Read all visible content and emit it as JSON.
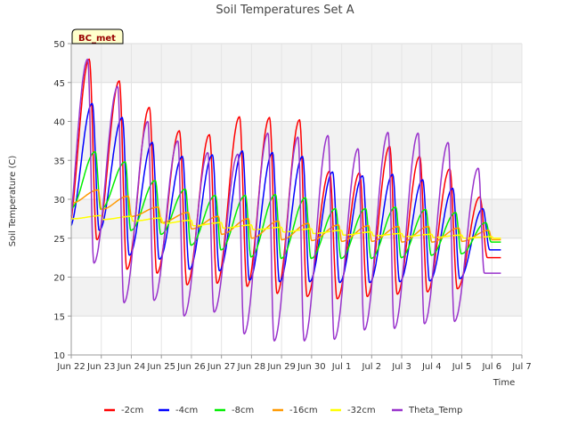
{
  "chart_data": {
    "type": "line",
    "title": "Soil Temperatures Set A",
    "xlabel": "Time",
    "ylabel": "Soil Temperature (C)",
    "badge": "BC_met",
    "ylim": [
      10,
      50
    ],
    "yticks": [
      10,
      15,
      20,
      25,
      30,
      35,
      40,
      45,
      50
    ],
    "xlim": [
      0,
      15
    ],
    "xticks": [
      {
        "x": 0,
        "label": "Jun 22"
      },
      {
        "x": 1,
        "label": "Jun 23"
      },
      {
        "x": 2,
        "label": "Jun 24"
      },
      {
        "x": 3,
        "label": "Jun 25"
      },
      {
        "x": 4,
        "label": "Jun 26"
      },
      {
        "x": 5,
        "label": "Jun 27"
      },
      {
        "x": 6,
        "label": "Jun 28"
      },
      {
        "x": 7,
        "label": "Jun 29"
      },
      {
        "x": 8,
        "label": "Jun 30"
      },
      {
        "x": 9,
        "label": "Jul 1"
      },
      {
        "x": 10,
        "label": "Jul 2"
      },
      {
        "x": 11,
        "label": "Jul 3"
      },
      {
        "x": 12,
        "label": "Jul 4"
      },
      {
        "x": 13,
        "label": "Jul 5"
      },
      {
        "x": 14,
        "label": "Jul 6"
      },
      {
        "x": 15,
        "label": "Jul 7"
      }
    ],
    "grid": true,
    "legend_position": "bottom",
    "series": [
      {
        "name": "-2cm",
        "color": "#ff0000",
        "x_start": 0.0,
        "x_end": 14.3,
        "peak_time": 0.6,
        "skew": 0.25,
        "offset": 0,
        "maxima": [
          48,
          45.2,
          41.8,
          38.8,
          38.3,
          40.6,
          40.5,
          40.2,
          33.6,
          33.4,
          36.8,
          35.5,
          33.9,
          30.3
        ],
        "minima": [
          25.2,
          24.8,
          21,
          20.5,
          19,
          19.2,
          18.8,
          17.9,
          17.5,
          17.2,
          17.5,
          17.8,
          18.1,
          18.5,
          22.5
        ]
      },
      {
        "name": "-4cm",
        "color": "#0000ff",
        "x_start": 0.0,
        "x_end": 14.3,
        "peak_time": 0.7,
        "skew": 0.27,
        "offset": 0,
        "maxima": [
          42.3,
          40.5,
          37.3,
          35.5,
          35.7,
          36.2,
          36,
          35.5,
          33.5,
          33,
          33.2,
          32.5,
          31.4,
          28.8
        ],
        "minima": [
          26.3,
          26,
          22.8,
          22.3,
          21,
          20.8,
          19.6,
          19.4,
          19.4,
          19.3,
          19.3,
          19.4,
          19.5,
          19.8,
          23.5
        ]
      },
      {
        "name": "-8cm",
        "color": "#00ee00",
        "x_start": 0.0,
        "x_end": 14.3,
        "peak_time": 0.8,
        "skew": 0.32,
        "offset": 0,
        "maxima": [
          36.1,
          34.8,
          32.4,
          31.3,
          30.5,
          30.5,
          30.6,
          30.2,
          28.8,
          28.8,
          29,
          28.7,
          28.3,
          27
        ],
        "minima": [
          28.8,
          28.7,
          26,
          25.5,
          24.1,
          23.5,
          22.6,
          22.4,
          22.4,
          22.4,
          22.4,
          22.5,
          22.8,
          23,
          24.5
        ]
      },
      {
        "name": "-16cm",
        "color": "#ff9900",
        "x_start": 0.0,
        "x_end": 14.3,
        "peak_time": 0.9,
        "skew": 0.4,
        "offset": 0,
        "maxima": [
          31.2,
          30.4,
          29,
          28.3,
          27.8,
          27.5,
          27.2,
          26.9,
          26.7,
          26.6,
          26.5,
          26.5,
          26.3,
          26
        ],
        "minima": [
          29.5,
          28.7,
          27.8,
          27,
          26.2,
          25.5,
          25,
          24.8,
          24.7,
          24.6,
          24.6,
          24.5,
          24.5,
          24.6,
          24.8
        ]
      },
      {
        "name": "-32cm",
        "color": "#ffff00",
        "x_start": 0.0,
        "x_end": 14.3,
        "peak_time": 1.0,
        "skew": 0.45,
        "offset": 0,
        "maxima": [
          27.9,
          27.8,
          27.6,
          27.3,
          27,
          26.7,
          26.4,
          26.2,
          26,
          25.8,
          25.6,
          25.5,
          25.4,
          25.2
        ],
        "minima": [
          27.5,
          27.4,
          27.2,
          26.9,
          26.6,
          26.3,
          26.1,
          25.8,
          25.6,
          25.4,
          25.3,
          25.2,
          25.1,
          25.0,
          25.0
        ]
      },
      {
        "name": "Theta_Temp",
        "color": "#9933cc",
        "x_start": 0.0,
        "x_end": 14.3,
        "peak_time": 0.55,
        "skew": 0.3,
        "offset": 0,
        "maxima": [
          48,
          44.5,
          40,
          37.5,
          36,
          35.8,
          38.5,
          38,
          38.2,
          36.5,
          38.6,
          38.5,
          37.3,
          34
        ],
        "minima": [
          22,
          21.8,
          16.7,
          17,
          15,
          15.5,
          12.7,
          11.8,
          11.8,
          12,
          13.2,
          13.4,
          14,
          14.3,
          20.5
        ]
      }
    ]
  }
}
